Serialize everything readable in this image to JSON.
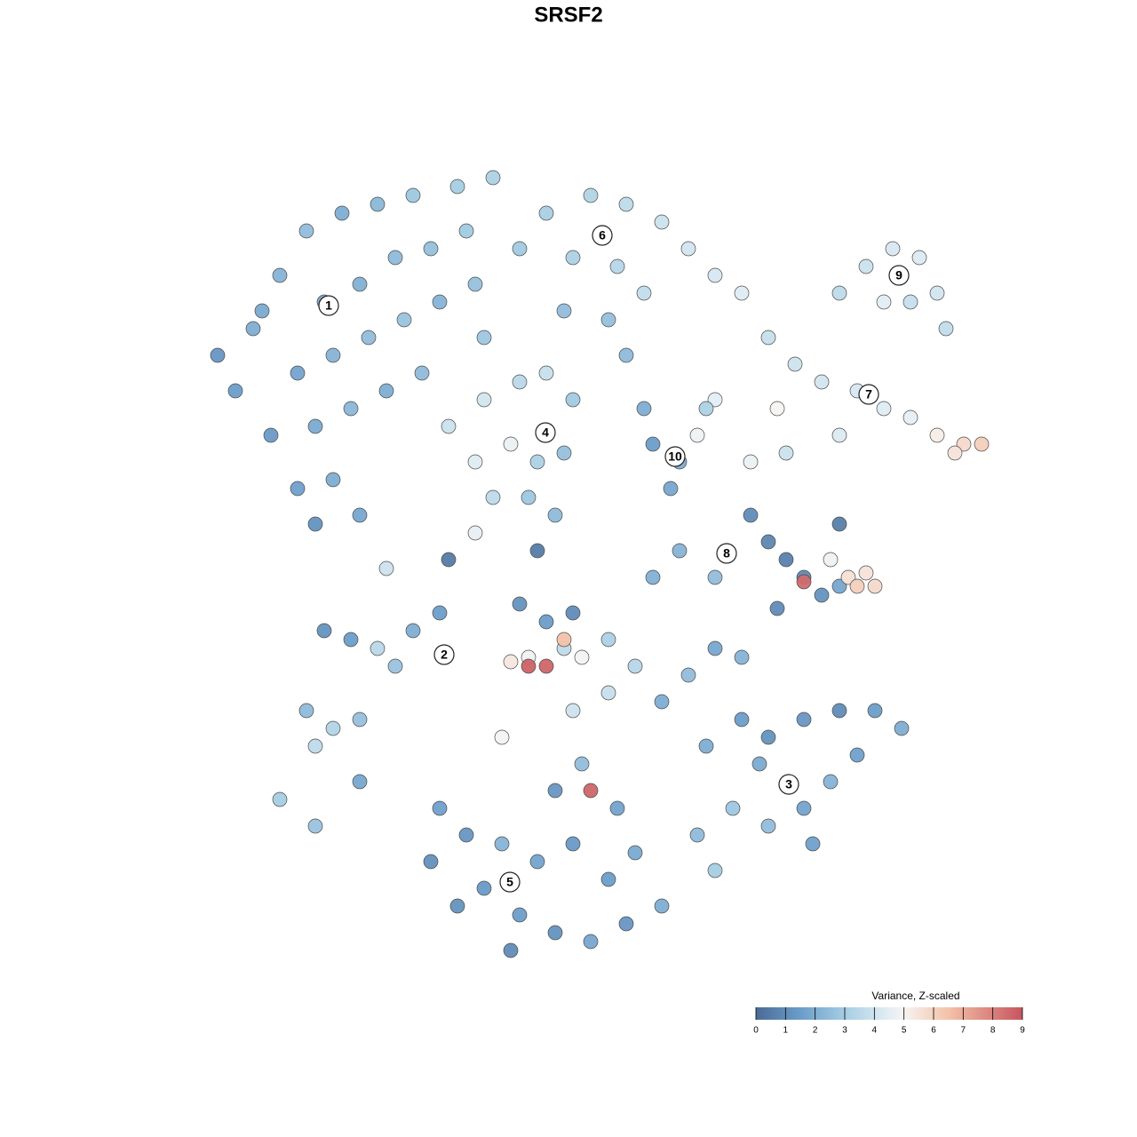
{
  "chart_data": {
    "type": "scatter",
    "title": "SRSF2",
    "xlim": [
      -47,
      47
    ],
    "ylim": [
      -46,
      47
    ],
    "x": [
      -40,
      -38,
      -35,
      -32,
      -28,
      -24,
      -20,
      -15,
      -11,
      -30,
      -26,
      -22,
      -18,
      -14,
      -33,
      -29,
      -25,
      -21,
      -17,
      -13,
      -36,
      -31,
      -27,
      -23,
      -33,
      -29,
      -26,
      -31,
      -42,
      -37,
      -19,
      -12,
      -5,
      0,
      4,
      8,
      11,
      14,
      17,
      -8,
      -2,
      3,
      6,
      2,
      -3,
      4,
      28,
      31,
      34,
      37,
      39,
      36,
      33,
      40,
      20,
      23,
      26,
      30,
      33,
      36,
      39,
      42,
      44,
      41,
      28,
      22,
      18,
      14,
      21,
      7,
      10,
      9,
      12,
      13,
      6,
      -16,
      -12,
      -8,
      -5,
      -2,
      -13,
      -9,
      -6,
      -3,
      -11,
      -7,
      -4,
      -13,
      18,
      20,
      22,
      24,
      26,
      28,
      28,
      27,
      29,
      30,
      31,
      32,
      24,
      14,
      10,
      7,
      21,
      -8,
      -5,
      -3,
      -7,
      -9,
      -7,
      -5,
      -3,
      -1,
      2,
      5,
      2,
      -2,
      -10,
      8,
      11,
      14,
      17,
      0,
      -1,
      -30,
      -27,
      -24,
      -20,
      -17,
      -22,
      -32,
      -29,
      -26,
      -31,
      -35,
      -31,
      -26,
      13,
      17,
      20,
      24,
      28,
      32,
      35,
      30,
      27,
      24,
      20,
      16,
      12,
      14,
      19,
      25,
      -17,
      -14,
      -18,
      -12,
      -8,
      -4,
      0,
      4,
      8,
      -6,
      -2,
      -10,
      2,
      -15,
      -9,
      5,
      -4,
      3,
      -23,
      -16,
      -6,
      -2
    ],
    "y": [
      20,
      27,
      33,
      38,
      40,
      41,
      42,
      43,
      44,
      30,
      32,
      35,
      36,
      38,
      22,
      24,
      26,
      28,
      30,
      32,
      15,
      16,
      18,
      20,
      9,
      10,
      6,
      5,
      24,
      29,
      22,
      26,
      40,
      42,
      41,
      39,
      36,
      33,
      31,
      36,
      35,
      34,
      31,
      28,
      29,
      24,
      31,
      34,
      36,
      35,
      31,
      30,
      30,
      27,
      26,
      23,
      21,
      20,
      18,
      17,
      15,
      14,
      14,
      13,
      15,
      13,
      12,
      19,
      18,
      14,
      12,
      9,
      15,
      18,
      18,
      16,
      19,
      21,
      22,
      19,
      12,
      14,
      12,
      13,
      8,
      8,
      6,
      4,
      6,
      3,
      1,
      -1,
      -3,
      -2,
      5,
      1,
      -1,
      -2,
      -0.5,
      -2,
      -1.5,
      -1,
      2,
      -1,
      -4.5,
      -4,
      -6,
      -9,
      -10,
      -10.5,
      -11,
      -11,
      -8,
      -10,
      -8,
      -11,
      -14,
      -16,
      -19,
      -15,
      -12,
      -9,
      -10,
      -25,
      -22,
      -7,
      -8,
      -9,
      -7,
      -5,
      -11,
      -16,
      -18,
      -17,
      -20,
      -26,
      -29,
      -24,
      -20,
      -17,
      -19,
      -17,
      -16,
      -16,
      -18,
      -21,
      -24,
      -27,
      -29,
      -27,
      -30,
      -34,
      -22,
      -31,
      -27,
      -30,
      -33,
      -36,
      -39,
      -41,
      -42,
      -40,
      -38,
      -33,
      -31,
      -31,
      -35,
      -38,
      -43,
      -32,
      -25,
      -27,
      0,
      1,
      2,
      -5
    ],
    "values": [
      1.5,
      2,
      2.2,
      2.5,
      2,
      2.3,
      2.8,
      3,
      3.2,
      1.8,
      2.1,
      2.4,
      2.6,
      2.9,
      1.7,
      2.2,
      2.5,
      2.7,
      2.2,
      2.6,
      1.4,
      1.9,
      2.3,
      2,
      1.6,
      2,
      1.8,
      1.2,
      1.3,
      1.9,
      2.4,
      2.8,
      3.1,
      3.3,
      3.6,
      3.9,
      4.1,
      4.2,
      4.4,
      2.9,
      3.2,
      3.4,
      3.7,
      2.6,
      2.5,
      2.4,
      3.6,
      3.9,
      4.2,
      4.3,
      4.1,
      3.8,
      4.5,
      3.7,
      3.8,
      4,
      4.1,
      4.2,
      4.4,
      4.6,
      5.2,
      5.8,
      6.1,
      5.5,
      4.3,
      3.9,
      4.7,
      4.5,
      5,
      1.5,
      2,
      1.8,
      4.8,
      3.2,
      2,
      3.9,
      4.1,
      3.5,
      3.8,
      2.9,
      4.4,
      4.7,
      3.2,
      2.6,
      3.6,
      2.8,
      2.4,
      4.6,
      1,
      0.8,
      0.7,
      0.9,
      1.2,
      1.8,
      0.6,
      4.8,
      5.6,
      6.1,
      5.5,
      5.8,
      8.5,
      2.5,
      2.2,
      2.1,
      1,
      1.2,
      1.5,
      3.6,
      4.8,
      5.4,
      8.7,
      8.6,
      6.5,
      4.9,
      3.2,
      3.4,
      3.8,
      4,
      4.9,
      2,
      2.5,
      1.8,
      2.2,
      8.6,
      2.5,
      1.2,
      1.5,
      3.5,
      2,
      1.5,
      2.7,
      2.4,
      3.3,
      2.6,
      3.6,
      3,
      2.7,
      1.8,
      2,
      1.5,
      1.2,
      1.3,
      1,
      1.5,
      2,
      1.6,
      2.2,
      1.7,
      2.5,
      2.8,
      2.4,
      3,
      1.9,
      1.6,
      1.6,
      1.3,
      1.1,
      1.4,
      1.5,
      1.2,
      1.8,
      1.3,
      2,
      1.7,
      1.4,
      2.2,
      1.5,
      1.2,
      1,
      1.9,
      1.3,
      1.7,
      4,
      0.5,
      0.5,
      1
    ],
    "annotations": [
      {
        "text": "1",
        "x": -29.5,
        "y": 29.6
      },
      {
        "text": "2",
        "x": -16.5,
        "y": -9.7
      },
      {
        "text": "3",
        "x": 22.3,
        "y": -24.3
      },
      {
        "text": "4",
        "x": -5.1,
        "y": 15.3
      },
      {
        "text": "5",
        "x": -9.1,
        "y": -35.3
      },
      {
        "text": "6",
        "x": 1.3,
        "y": 37.5
      },
      {
        "text": "7",
        "x": 31.3,
        "y": 19.6
      },
      {
        "text": "8",
        "x": 15.3,
        "y": 1.7
      },
      {
        "text": "9",
        "x": 34.7,
        "y": 33
      },
      {
        "text": "10",
        "x": 9.5,
        "y": 12.6
      }
    ],
    "colorbar": {
      "title": "Variance, Z-scaled",
      "lim": [
        0,
        9
      ],
      "ticks": [
        0,
        1,
        2,
        3,
        4,
        5,
        6,
        7,
        8,
        9
      ],
      "stops": [
        0,
        1.5,
        3,
        4.5,
        5,
        6.5,
        9
      ],
      "colors": [
        "#4a6b95",
        "#6b9dca",
        "#a5cde3",
        "#e3eef4",
        "#f6f4f2",
        "#f3c2a8",
        "#c7555e"
      ]
    }
  }
}
